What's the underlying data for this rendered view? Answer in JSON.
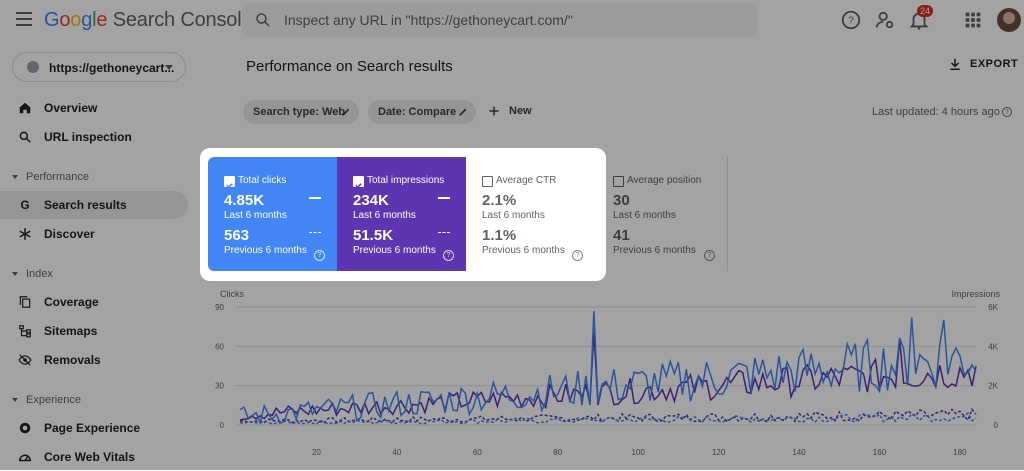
{
  "header": {
    "logo": "Google Search Console",
    "search_placeholder": "Inspect any URL in \"https://gethoneycart.com/\"",
    "notification_count": "24"
  },
  "sidebar": {
    "property": "https://gethoneycart...",
    "items": [
      {
        "label": "Overview",
        "icon": "home-icon"
      },
      {
        "label": "URL inspection",
        "icon": "search-icon"
      }
    ],
    "sections": [
      {
        "title": "Performance",
        "items": [
          {
            "label": "Search results",
            "icon": "google-g-icon",
            "active": true
          },
          {
            "label": "Discover",
            "icon": "asterisk-icon"
          }
        ]
      },
      {
        "title": "Index",
        "items": [
          {
            "label": "Coverage",
            "icon": "copy-icon"
          },
          {
            "label": "Sitemaps",
            "icon": "sitemap-icon"
          },
          {
            "label": "Removals",
            "icon": "eye-off-icon"
          }
        ]
      },
      {
        "title": "Experience",
        "items": [
          {
            "label": "Page Experience",
            "icon": "page-experience-icon"
          },
          {
            "label": "Core Web Vitals",
            "icon": "speed-icon"
          }
        ]
      }
    ]
  },
  "main": {
    "title": "Performance on Search results",
    "export_label": "EXPORT",
    "chips": [
      {
        "label": "Search type: Web"
      },
      {
        "label": "Date: Compare"
      }
    ],
    "new_label": "New",
    "last_updated": "Last updated: 4 hours ago"
  },
  "metrics": [
    {
      "title": "Total clicks",
      "value": "4.85K",
      "period": "Last 6 months",
      "value_prev": "563",
      "period_prev": "Previous 6 months",
      "checked": true,
      "color": "#4285f4"
    },
    {
      "title": "Total impressions",
      "value": "234K",
      "period": "Last 6 months",
      "value_prev": "51.5K",
      "period_prev": "Previous 6 months",
      "checked": true,
      "color": "#5e35b1"
    },
    {
      "title": "Average CTR",
      "value": "2.1%",
      "period": "Last 6 months",
      "value_prev": "1.1%",
      "period_prev": "Previous 6 months",
      "checked": false
    },
    {
      "title": "Average position",
      "value": "30",
      "period": "Last 6 months",
      "value_prev": "41",
      "period_prev": "Previous 6 months",
      "checked": false
    }
  ],
  "chart_data": {
    "type": "line",
    "ylabel_left": "Clicks",
    "ylabel_right": "Impressions",
    "yticks_left": [
      "90",
      "60",
      "30",
      "0"
    ],
    "yticks_right": [
      "6K",
      "4K",
      "2K",
      "0"
    ],
    "xticks": [
      "20",
      "40",
      "60",
      "80",
      "100",
      "120",
      "140",
      "160",
      "180"
    ],
    "xlim": [
      0,
      184
    ],
    "ylim_left": [
      0,
      90
    ],
    "ylim_right": [
      0,
      6000
    ],
    "grid": true,
    "series_style": {
      "clicks_current": "#4285f4",
      "impressions_current": "#5e35b1",
      "previous": "dashed"
    }
  }
}
